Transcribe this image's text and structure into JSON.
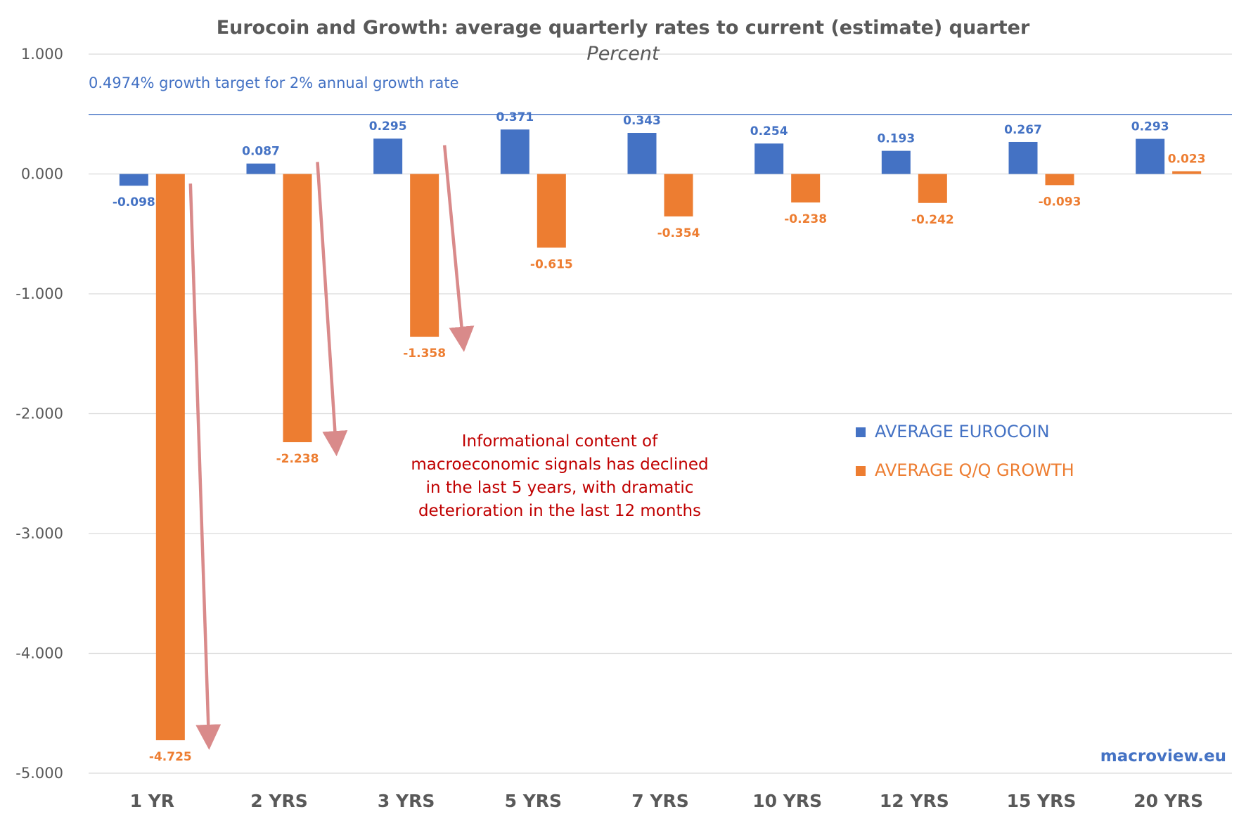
{
  "chart_data": {
    "type": "bar",
    "title": "Eurocoin and Growth: average quarterly rates to current (estimate) quarter",
    "subtitle": "Percent",
    "categories": [
      "1 YR",
      "2 YRS",
      "3 YRS",
      "5 YRS",
      "7 YRS",
      "10 YRS",
      "12 YRS",
      "15 YRS",
      "20 YRS"
    ],
    "series": [
      {
        "name": "AVERAGE EUROCOIN",
        "color": "#4472c4",
        "values": [
          -0.098,
          0.087,
          0.295,
          0.371,
          0.343,
          0.254,
          0.193,
          0.267,
          0.293
        ],
        "labels": [
          "-0.098",
          "0.087",
          "0.295",
          "0.371",
          "0.343",
          "0.254",
          "0.193",
          "0.267",
          "0.293"
        ]
      },
      {
        "name": "AVERAGE Q/Q GROWTH",
        "color": "#ed7d31",
        "values": [
          -4.725,
          -2.238,
          -1.358,
          -0.615,
          -0.354,
          -0.238,
          -0.242,
          -0.093,
          0.023
        ],
        "labels": [
          "-4.725",
          "-2.238",
          "-1.358",
          "-0.615",
          "-0.354",
          "-0.238",
          "-0.242",
          "-0.093",
          "0.023"
        ]
      }
    ],
    "ylim": [
      -5,
      1
    ],
    "yticks": [
      1,
      0,
      -1,
      -2,
      -3,
      -4,
      -5
    ],
    "ytick_labels": [
      "1.000",
      "0.000",
      "-1.000",
      "-2.000",
      "-3.000",
      "-4.000",
      "-5.000"
    ],
    "grid": true,
    "legend_position": "right",
    "reference_line": {
      "value": 0.4974,
      "label": "0.4974% growth target for 2% annual growth rate"
    },
    "annotation_lines": [
      "Informational content of",
      "macroeconomic signals has  declined",
      "in the last 5 years, with dramatic",
      "deterioration in the last 12 months"
    ],
    "arrow_color": "#d98a8a",
    "arrows": [
      {
        "category": "1 YR",
        "from": -0.08,
        "to": -4.7
      },
      {
        "category": "2 YRS",
        "from": 0.1,
        "to": -2.25
      },
      {
        "category": "3 YRS",
        "from": 0.24,
        "to": -1.38
      }
    ],
    "watermark": "macroview.eu"
  }
}
